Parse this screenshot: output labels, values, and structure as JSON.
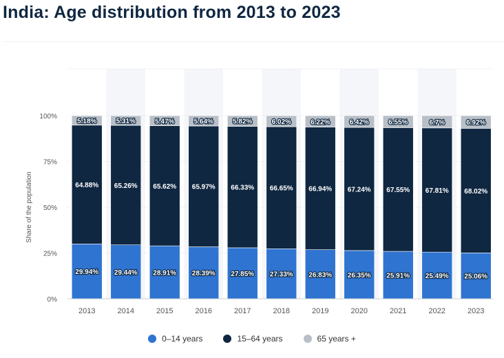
{
  "page": {
    "title": "India: Age distribution from 2013 to 2023"
  },
  "colors": {
    "age_0_14": "#2f74d0",
    "age_15_64": "#0f2741",
    "age_65_plus": "#b8bfc7",
    "column_shade": "#f4f6f9",
    "grid": "#d7dce2",
    "axis_text": "#555555"
  },
  "chart_data": {
    "type": "bar",
    "stacked": true,
    "title": "India: Age distribution from 2013 to 2023",
    "xlabel": "",
    "ylabel": "Share of the population",
    "ylim": [
      0,
      100
    ],
    "yticks": [
      0,
      25,
      50,
      75,
      100
    ],
    "ytick_labels": [
      "0%",
      "25%",
      "50%",
      "75%",
      "100%"
    ],
    "categories": [
      "2013",
      "2014",
      "2015",
      "2016",
      "2017",
      "2018",
      "2019",
      "2020",
      "2021",
      "2022",
      "2023"
    ],
    "series": [
      {
        "name": "0-14 years",
        "legend_label": "0–14 years",
        "values": [
          29.94,
          29.44,
          28.91,
          28.39,
          27.85,
          27.33,
          26.83,
          26.35,
          25.91,
          25.49,
          25.06
        ],
        "labels": [
          "29.94%",
          "29.44%",
          "28.91%",
          "28.39%",
          "27.85%",
          "27.33%",
          "26.83%",
          "26.35%",
          "25.91%",
          "25.49%",
          "25.06%"
        ]
      },
      {
        "name": "15-64 years",
        "legend_label": "15–64 years",
        "values": [
          64.88,
          65.26,
          65.62,
          65.97,
          66.33,
          66.65,
          66.94,
          67.24,
          67.55,
          67.81,
          68.02
        ],
        "labels": [
          "64.88%",
          "65.26%",
          "65.62%",
          "65.97%",
          "66.33%",
          "66.65%",
          "66.94%",
          "67.24%",
          "67.55%",
          "67.81%",
          "68.02%"
        ]
      },
      {
        "name": "65 years +",
        "legend_label": "65 years +",
        "values": [
          5.18,
          5.31,
          5.47,
          5.64,
          5.82,
          6.02,
          6.22,
          6.42,
          6.55,
          6.7,
          6.92
        ],
        "labels": [
          "5.18%",
          "5.31%",
          "5.47%",
          "5.64%",
          "5.82%",
          "6.02%",
          "6.22%",
          "6.42%",
          "6.55%",
          "6.7%",
          "6.92%"
        ]
      }
    ],
    "legend_position": "bottom-center",
    "grid": true
  }
}
